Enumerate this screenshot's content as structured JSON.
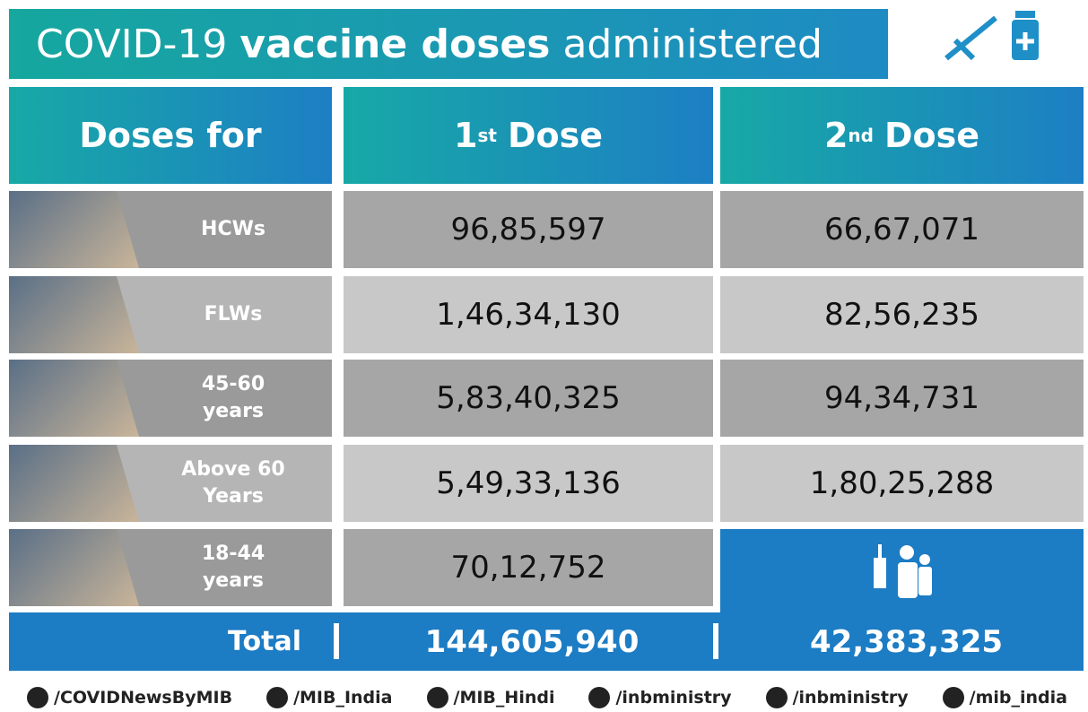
{
  "header": {
    "title_prefix": "COVID-19",
    "title_bold": "vaccine doses",
    "title_suffix": "administered"
  },
  "table": {
    "columns": [
      {
        "label": "Doses for"
      },
      {
        "number": "1",
        "suffix": "st",
        "label": "Dose"
      },
      {
        "number": "2",
        "suffix": "nd",
        "label": "Dose"
      }
    ],
    "rows": [
      {
        "lines": [
          "HCWs"
        ],
        "dose1": "96,85,597",
        "dose2": "66,67,071"
      },
      {
        "lines": [
          "FLWs"
        ],
        "dose1": "1,46,34,130",
        "dose2": "82,56,235"
      },
      {
        "lines": [
          "45-60",
          "years"
        ],
        "dose1": "5,83,40,325",
        "dose2": "94,34,731"
      },
      {
        "lines": [
          "Above 60",
          "Years"
        ],
        "dose1": "5,49,33,136",
        "dose2": "1,80,25,288"
      },
      {
        "lines": [
          "18-44",
          "years"
        ],
        "dose1": "70,12,752",
        "dose2": null
      }
    ],
    "total": {
      "label": "Total",
      "dose1": "144,605,940",
      "dose2": "42,383,325"
    }
  },
  "footer": {
    "handles": [
      "/COVIDNewsByMIB",
      "/MIB_India",
      "/MIB_Hindi",
      "/inbministry",
      "/inbministry",
      "/mib_india"
    ]
  }
}
